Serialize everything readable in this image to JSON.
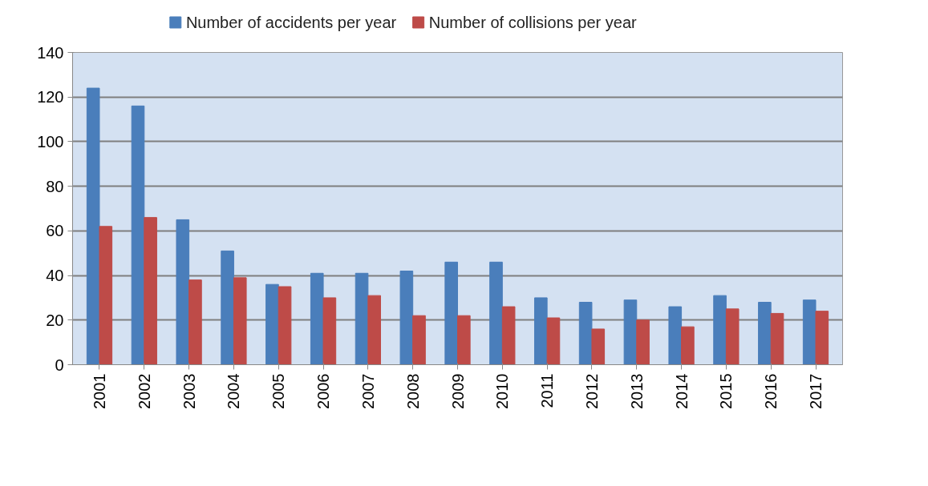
{
  "chart_data": {
    "type": "bar",
    "categories": [
      "2001",
      "2002",
      "2003",
      "2004",
      "2005",
      "2006",
      "2007",
      "2008",
      "2009",
      "2010",
      "2011",
      "2012",
      "2013",
      "2014",
      "2015",
      "2016",
      "2017"
    ],
    "series": [
      {
        "name": "Number of accidents per year",
        "color": "#4a7ebb",
        "values": [
          124,
          116,
          65,
          51,
          36,
          41,
          41,
          42,
          46,
          46,
          30,
          28,
          29,
          26,
          31,
          28,
          29
        ]
      },
      {
        "name": "Number of collisions per year",
        "color": "#be4b48",
        "values": [
          62,
          66,
          38,
          39,
          35,
          30,
          31,
          22,
          22,
          26,
          21,
          16,
          20,
          17,
          25,
          23,
          24
        ]
      }
    ],
    "ylim": [
      0,
      140
    ],
    "yticks": [
      0,
      20,
      40,
      60,
      80,
      100,
      120,
      140
    ],
    "grid": "y",
    "legend": "top"
  }
}
